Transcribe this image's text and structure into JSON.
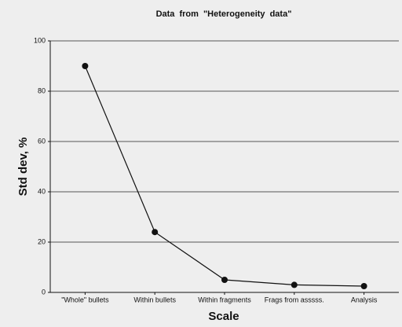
{
  "chart_data": {
    "type": "line",
    "title": "Data  from  \"Heterogeneity  data\"",
    "x_label": "Scale",
    "y_label": "Std dev, %",
    "categories": [
      "\"Whole\" bullets",
      "Within bullets",
      "Within fragments",
      "Frags from asssss.",
      "Analysis"
    ],
    "values": [
      90,
      24,
      5,
      3,
      2.5
    ],
    "color": "#111111",
    "ylim": [
      0,
      100
    ],
    "yticks": [
      0,
      20,
      40,
      60,
      80,
      100
    ],
    "grid": true
  }
}
